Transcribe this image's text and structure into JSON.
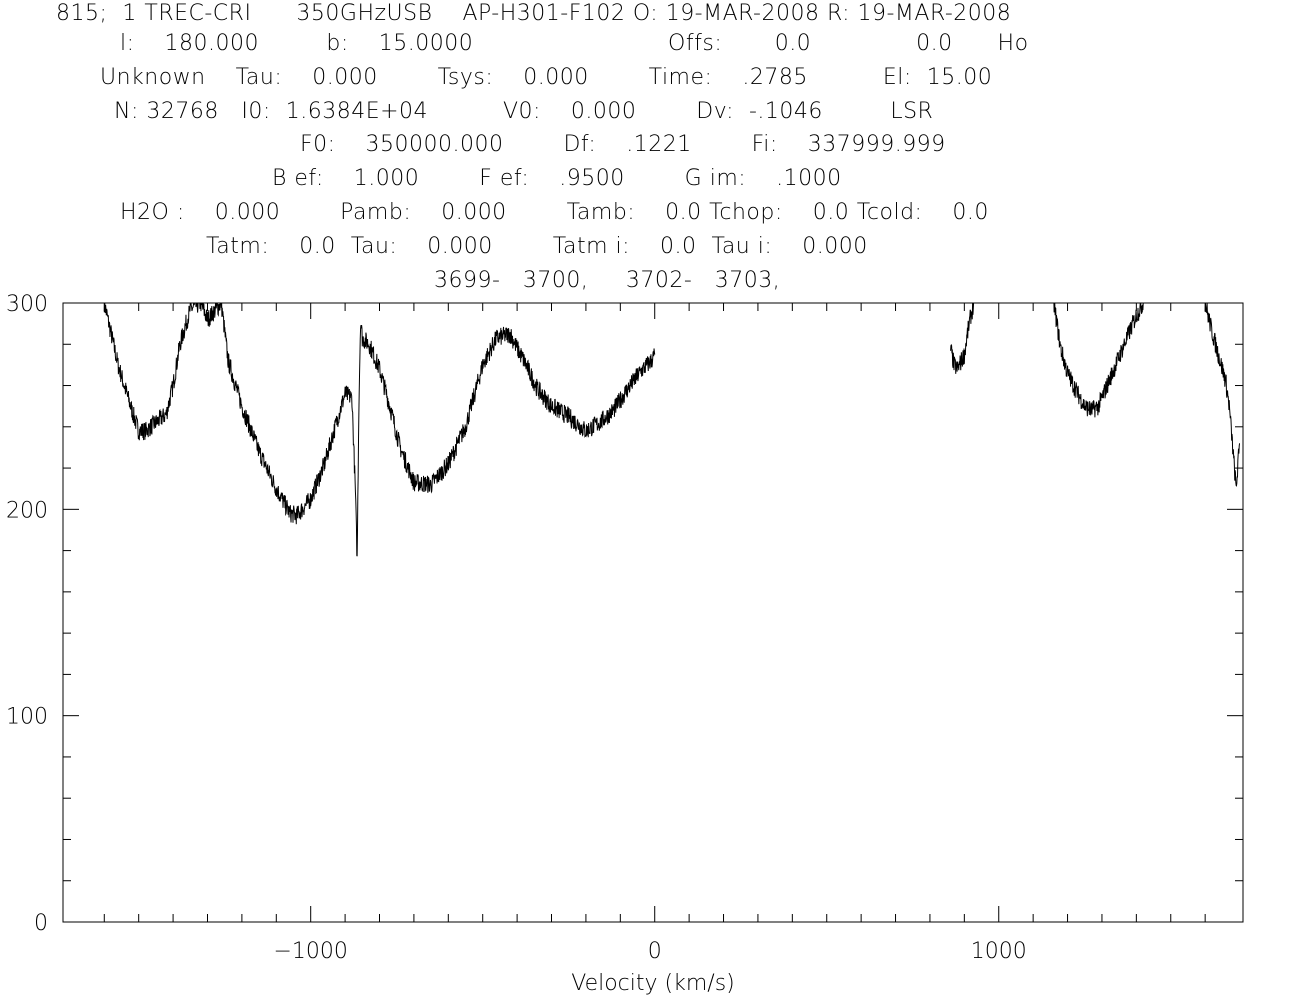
{
  "header": {
    "line1": "815;  1 TREC-CRI      350GHzUSB    AP-H301-F102 O: 19-MAR-2008 R: 19-MAR-2008",
    "line2": "l:    180.000         b:    15.0000                          Offs:       0.0              0.0      Ho",
    "line3": "Unknown    Tau:    0.000        Tsys:    0.000        Time:    .2785          El:  15.00",
    "line4": "N: 32768   I0:  1.6384E+04          V0:    0.000        Dv:  -.1046         LSR",
    "line5": "F0:    350000.000        Df:    .1221        Fi:    337999.999",
    "line6": "B ef:    1.000        F ef:    .9500        G im:    .1000",
    "line7": "H2O :    0.000        Pamb:    0.000        Tamb:    0.0 Tchop:    0.0 Tcold:    0.0",
    "line8": "Tatm:    0.0  Tau:    0.000        Tatm i:    0.0  Tau i:    0.000",
    "line9": "3699-   3700,     3702-   3703,"
  },
  "chart_data": {
    "type": "line",
    "title": "",
    "xlabel": "Velocity (km/s)",
    "ylabel": "",
    "xlim": [
      -1720,
      1710
    ],
    "ylim": [
      0,
      300
    ],
    "x_ticks": [
      -1000,
      0,
      1000
    ],
    "x_tick_labels": [
      "−1000",
      "0",
      "1000"
    ],
    "y_ticks": [
      0,
      100,
      200,
      300
    ],
    "y_tick_labels": [
      "0",
      "100",
      "200",
      "300"
    ],
    "grid": false,
    "series": [
      {
        "segments": [
          {
            "x": [
              -1600,
              -1560,
              -1520,
              -1500,
              -1480,
              -1450,
              -1420,
              -1400,
              -1380,
              -1350,
              -1320,
              -1300,
              -1280,
              -1260,
              -1240,
              -1200,
              -1150,
              -1100,
              -1060,
              -1040,
              -1000,
              -960,
              -920,
              -900,
              -880,
              -870,
              -865,
              -860,
              -855,
              -850,
              -830,
              -800,
              -770,
              -740,
              -700,
              -650,
              -600,
              -550,
              -500,
              -460,
              -420,
              -400,
              -380,
              -340,
              -300,
              -250,
              -200,
              -160,
              -120,
              -80,
              -40,
              -10,
              0
            ],
            "y": [
              300,
              270,
              248,
              238,
              238,
              242,
              246,
              260,
              280,
              297,
              300,
              292,
              296,
              300,
              272,
              250,
              228,
              210,
              198,
              197,
              205,
              222,
              245,
              256,
              254,
              208,
              175,
              250,
              292,
              283,
              280,
              268,
              250,
              230,
              213,
              212,
              222,
              240,
              270,
              283,
              285,
              278,
              272,
              258,
              250,
              245,
              238,
              242,
              248,
              258,
              267,
              272,
              275
            ]
          },
          {
            "x": [
              860,
              870,
              880,
              900,
              910,
              920,
              930
            ],
            "y": [
              278,
              270,
              268,
              275,
              286,
              295,
              300
            ]
          },
          {
            "x": [
              1160,
              1180,
              1200,
              1230,
              1250,
              1270,
              1290,
              1310,
              1330,
              1360,
              1400,
              1420
            ],
            "y": [
              300,
              278,
              266,
              256,
              250,
              248,
              250,
              258,
              266,
              278,
              294,
              300
            ]
          },
          {
            "x": [
              1600,
              1620,
              1640,
              1660,
              1670,
              1680,
              1690,
              1700
            ],
            "y": [
              300,
              286,
              274,
              262,
              250,
              230,
              210,
              232
            ]
          }
        ]
      }
    ]
  }
}
